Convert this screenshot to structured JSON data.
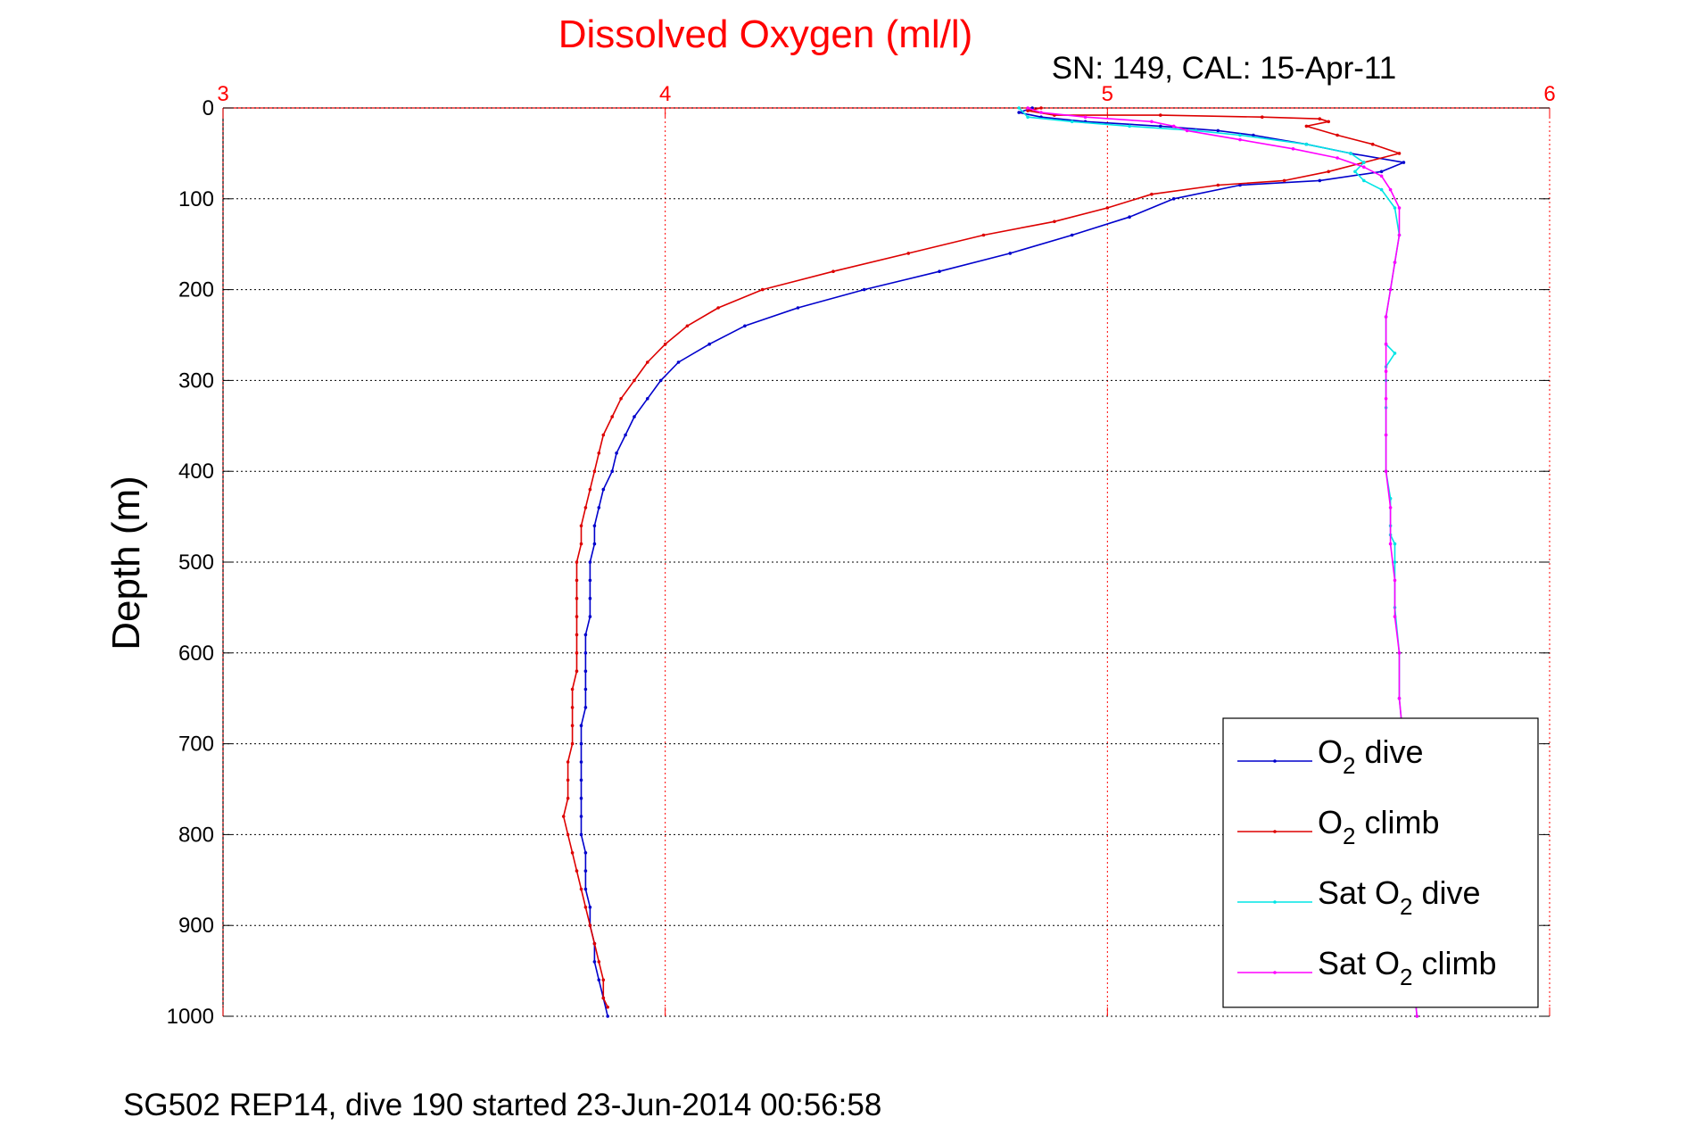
{
  "chart_data": {
    "type": "line",
    "title": "Dissolved Oxygen (ml/l)",
    "subtitle": "SN: 149, CAL: 15-Apr-11",
    "footer": "SG502 REP14, dive 190 started 23-Jun-2014 00:56:58",
    "xlabel": "",
    "ylabel": "Depth (m)",
    "xlim": [
      3,
      6
    ],
    "ylim": [
      0,
      1000
    ],
    "y_reversed": true,
    "x_axis_position": "top",
    "x_ticks": [
      "3",
      "4",
      "5",
      "6"
    ],
    "y_ticks": [
      "0",
      "100",
      "200",
      "300",
      "400",
      "500",
      "600",
      "700",
      "800",
      "900",
      "1000"
    ],
    "grid": true,
    "legend_position": "bottom-right",
    "colors": {
      "title": "#ff0000",
      "x_axis": "#ff0000",
      "y_axis": "#000000",
      "grid_x": "#ff0000",
      "grid_y": "#000000"
    },
    "series": [
      {
        "name": "O2 dive",
        "legend_main": "O",
        "legend_sub": "2",
        "legend_rest": " dive",
        "color": "#0000cc",
        "marker": "dot",
        "points": [
          [
            4.83,
            0
          ],
          [
            4.8,
            5
          ],
          [
            4.85,
            10
          ],
          [
            4.95,
            15
          ],
          [
            5.12,
            20
          ],
          [
            5.25,
            25
          ],
          [
            5.33,
            30
          ],
          [
            5.45,
            40
          ],
          [
            5.55,
            50
          ],
          [
            5.67,
            60
          ],
          [
            5.62,
            70
          ],
          [
            5.48,
            80
          ],
          [
            5.3,
            85
          ],
          [
            5.15,
            100
          ],
          [
            5.05,
            120
          ],
          [
            4.92,
            140
          ],
          [
            4.78,
            160
          ],
          [
            4.62,
            180
          ],
          [
            4.45,
            200
          ],
          [
            4.3,
            220
          ],
          [
            4.18,
            240
          ],
          [
            4.1,
            260
          ],
          [
            4.03,
            280
          ],
          [
            3.99,
            300
          ],
          [
            3.96,
            320
          ],
          [
            3.93,
            340
          ],
          [
            3.91,
            360
          ],
          [
            3.89,
            380
          ],
          [
            3.88,
            400
          ],
          [
            3.86,
            420
          ],
          [
            3.85,
            440
          ],
          [
            3.84,
            460
          ],
          [
            3.84,
            480
          ],
          [
            3.83,
            500
          ],
          [
            3.83,
            520
          ],
          [
            3.83,
            540
          ],
          [
            3.83,
            560
          ],
          [
            3.82,
            580
          ],
          [
            3.82,
            600
          ],
          [
            3.82,
            620
          ],
          [
            3.82,
            640
          ],
          [
            3.82,
            660
          ],
          [
            3.81,
            680
          ],
          [
            3.81,
            700
          ],
          [
            3.81,
            720
          ],
          [
            3.81,
            740
          ],
          [
            3.81,
            760
          ],
          [
            3.81,
            780
          ],
          [
            3.81,
            800
          ],
          [
            3.82,
            820
          ],
          [
            3.82,
            840
          ],
          [
            3.82,
            860
          ],
          [
            3.83,
            880
          ],
          [
            3.83,
            900
          ],
          [
            3.84,
            920
          ],
          [
            3.84,
            940
          ],
          [
            3.85,
            960
          ],
          [
            3.86,
            980
          ],
          [
            3.87,
            1000
          ]
        ]
      },
      {
        "name": "O2 climb",
        "legend_main": "O",
        "legend_sub": "2",
        "legend_rest": " climb",
        "color": "#dd0000",
        "marker": "dot",
        "points": [
          [
            4.85,
            0
          ],
          [
            4.82,
            3
          ],
          [
            4.88,
            8
          ],
          [
            5.12,
            8
          ],
          [
            5.35,
            10
          ],
          [
            5.48,
            12
          ],
          [
            5.5,
            15
          ],
          [
            5.45,
            20
          ],
          [
            5.52,
            30
          ],
          [
            5.6,
            40
          ],
          [
            5.66,
            50
          ],
          [
            5.58,
            60
          ],
          [
            5.5,
            70
          ],
          [
            5.4,
            80
          ],
          [
            5.25,
            85
          ],
          [
            5.1,
            95
          ],
          [
            5.0,
            110
          ],
          [
            4.88,
            125
          ],
          [
            4.72,
            140
          ],
          [
            4.55,
            160
          ],
          [
            4.38,
            180
          ],
          [
            4.22,
            200
          ],
          [
            4.12,
            220
          ],
          [
            4.05,
            240
          ],
          [
            4.0,
            260
          ],
          [
            3.96,
            280
          ],
          [
            3.93,
            300
          ],
          [
            3.9,
            320
          ],
          [
            3.88,
            340
          ],
          [
            3.86,
            360
          ],
          [
            3.85,
            380
          ],
          [
            3.84,
            400
          ],
          [
            3.83,
            420
          ],
          [
            3.82,
            440
          ],
          [
            3.81,
            460
          ],
          [
            3.81,
            480
          ],
          [
            3.8,
            500
          ],
          [
            3.8,
            520
          ],
          [
            3.8,
            540
          ],
          [
            3.8,
            560
          ],
          [
            3.8,
            580
          ],
          [
            3.8,
            600
          ],
          [
            3.8,
            620
          ],
          [
            3.79,
            640
          ],
          [
            3.79,
            660
          ],
          [
            3.79,
            680
          ],
          [
            3.79,
            700
          ],
          [
            3.78,
            720
          ],
          [
            3.78,
            740
          ],
          [
            3.78,
            760
          ],
          [
            3.77,
            780
          ],
          [
            3.78,
            800
          ],
          [
            3.79,
            820
          ],
          [
            3.8,
            840
          ],
          [
            3.81,
            860
          ],
          [
            3.82,
            880
          ],
          [
            3.83,
            900
          ],
          [
            3.84,
            920
          ],
          [
            3.85,
            940
          ],
          [
            3.86,
            960
          ],
          [
            3.86,
            980
          ],
          [
            3.87,
            990
          ]
        ]
      },
      {
        "name": "Sat O2 dive",
        "legend_main": "Sat O",
        "legend_sub": "2",
        "legend_rest": " dive",
        "color": "#00e5e5",
        "marker": "dot",
        "points": [
          [
            4.8,
            0
          ],
          [
            4.82,
            10
          ],
          [
            4.92,
            15
          ],
          [
            5.05,
            20
          ],
          [
            5.2,
            25
          ],
          [
            5.3,
            30
          ],
          [
            5.45,
            40
          ],
          [
            5.55,
            50
          ],
          [
            5.58,
            60
          ],
          [
            5.56,
            70
          ],
          [
            5.58,
            80
          ],
          [
            5.62,
            90
          ],
          [
            5.65,
            110
          ],
          [
            5.66,
            140
          ],
          [
            5.65,
            170
          ],
          [
            5.64,
            200
          ],
          [
            5.63,
            230
          ],
          [
            5.63,
            260
          ],
          [
            5.65,
            270
          ],
          [
            5.63,
            285
          ],
          [
            5.63,
            300
          ],
          [
            5.63,
            330
          ],
          [
            5.63,
            360
          ],
          [
            5.63,
            400
          ],
          [
            5.64,
            430
          ],
          [
            5.64,
            460
          ],
          [
            5.64,
            470
          ],
          [
            5.65,
            480
          ],
          [
            5.65,
            500
          ],
          [
            5.65,
            550
          ],
          [
            5.66,
            600
          ],
          [
            5.66,
            650
          ],
          [
            5.67,
            700
          ],
          [
            5.67,
            750
          ],
          [
            5.68,
            800
          ],
          [
            5.68,
            850
          ],
          [
            5.69,
            900
          ],
          [
            5.69,
            950
          ],
          [
            5.7,
            1000
          ]
        ]
      },
      {
        "name": "Sat O2 climb",
        "legend_main": "Sat O",
        "legend_sub": "2",
        "legend_rest": " climb",
        "color": "#ff00ff",
        "marker": "dot",
        "points": [
          [
            4.82,
            0
          ],
          [
            4.85,
            5
          ],
          [
            4.95,
            10
          ],
          [
            5.1,
            15
          ],
          [
            5.15,
            20
          ],
          [
            5.18,
            25
          ],
          [
            5.3,
            35
          ],
          [
            5.42,
            45
          ],
          [
            5.52,
            55
          ],
          [
            5.58,
            65
          ],
          [
            5.62,
            75
          ],
          [
            5.64,
            90
          ],
          [
            5.66,
            110
          ],
          [
            5.66,
            140
          ],
          [
            5.65,
            170
          ],
          [
            5.64,
            200
          ],
          [
            5.63,
            230
          ],
          [
            5.63,
            260
          ],
          [
            5.63,
            290
          ],
          [
            5.63,
            320
          ],
          [
            5.63,
            360
          ],
          [
            5.63,
            400
          ],
          [
            5.64,
            440
          ],
          [
            5.64,
            480
          ],
          [
            5.65,
            520
          ],
          [
            5.65,
            560
          ],
          [
            5.66,
            600
          ],
          [
            5.66,
            650
          ],
          [
            5.67,
            700
          ],
          [
            5.67,
            750
          ],
          [
            5.68,
            800
          ],
          [
            5.68,
            850
          ],
          [
            5.69,
            900
          ],
          [
            5.69,
            950
          ],
          [
            5.7,
            1000
          ]
        ]
      }
    ]
  }
}
